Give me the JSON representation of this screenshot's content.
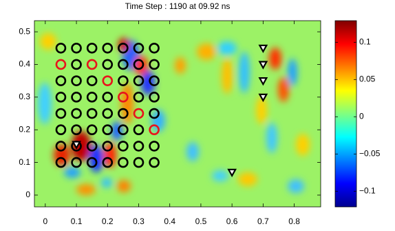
{
  "chart_data": {
    "type": "scatter",
    "title": "Time Step :   1190 at 09.92 ns",
    "xlim": [
      -0.035,
      0.885
    ],
    "ylim": [
      -0.036,
      0.534
    ],
    "xticks": [
      0,
      0.1,
      0.2,
      0.3,
      0.4,
      0.5,
      0.6,
      0.7,
      0.8
    ],
    "yticks": [
      0,
      0.1,
      0.2,
      0.3,
      0.4,
      0.5
    ],
    "series": [
      {
        "color": "#000000",
        "marker": "circle",
        "x": [
          0.05,
          0.1,
          0.15,
          0.2,
          0.25,
          0.3,
          0.35,
          0.1,
          0.2,
          0.25,
          0.3,
          0.35,
          0.05,
          0.1,
          0.15,
          0.25,
          0.3,
          0.35,
          0.05,
          0.1,
          0.15,
          0.2,
          0.3,
          0.35,
          0.05,
          0.1,
          0.15,
          0.2,
          0.25,
          0.35,
          0.05,
          0.1,
          0.15,
          0.2,
          0.25,
          0.3,
          0.05,
          0.1,
          0.15,
          0.2,
          0.25,
          0.3,
          0.35,
          0.05,
          0.1,
          0.15,
          0.2,
          0.25,
          0.3,
          0.35
        ],
        "y": [
          0.45,
          0.45,
          0.45,
          0.45,
          0.45,
          0.45,
          0.45,
          0.4,
          0.4,
          0.4,
          0.4,
          0.4,
          0.35,
          0.35,
          0.35,
          0.35,
          0.35,
          0.35,
          0.3,
          0.3,
          0.3,
          0.3,
          0.3,
          0.3,
          0.25,
          0.25,
          0.25,
          0.25,
          0.25,
          0.25,
          0.2,
          0.2,
          0.2,
          0.2,
          0.2,
          0.2,
          0.15,
          0.15,
          0.15,
          0.15,
          0.15,
          0.15,
          0.15,
          0.1,
          0.1,
          0.1,
          0.1,
          0.1,
          0.1,
          0.1
        ]
      },
      {
        "color": "#e8141c",
        "marker": "circle",
        "x": [
          0.05,
          0.15,
          0.2,
          0.25,
          0.3,
          0.35
        ],
        "y": [
          0.4,
          0.4,
          0.35,
          0.3,
          0.25,
          0.2
        ]
      },
      {
        "color": "#000000",
        "marker": "triangle",
        "x": [
          0.7,
          0.7,
          0.7,
          0.7,
          0.6,
          0.1
        ],
        "y": [
          0.45,
          0.4,
          0.35,
          0.3,
          0.07,
          0.155
        ]
      }
    ],
    "colorbar": {
      "colormap": "jet",
      "clim": [
        -0.121,
        0.129
      ],
      "ticks": [
        {
          "value": -0.1,
          "label": "−0.1"
        },
        {
          "value": -0.05,
          "label": "−0.05"
        },
        0,
        0.05,
        0.1
      ]
    }
  }
}
